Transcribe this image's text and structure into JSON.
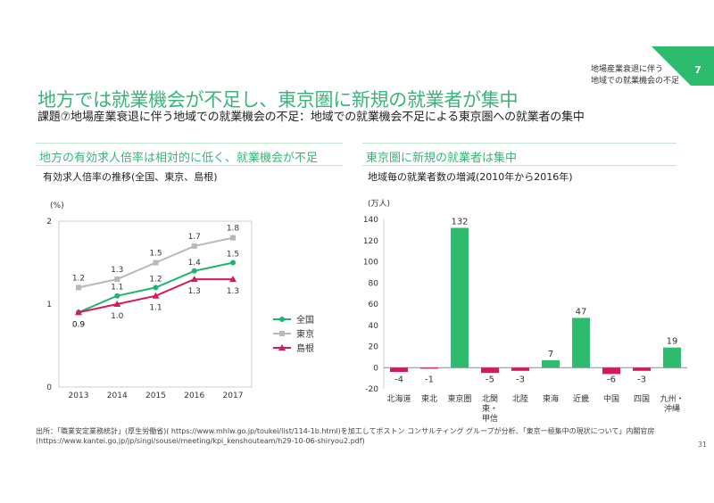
{
  "header": {
    "page_badge": "7",
    "side_note_line1": "地場産業衰退に伴う",
    "side_note_line2": "地域での就業機会の不足",
    "title": "地方では就業機会が不足し、東京圏に新規の就業者が集中",
    "subtitle": "課題⑦地場産業衰退に伴う地域での就業機会の不足：地域での就業機会不足による東京圏への就業者の集中"
  },
  "sections": {
    "left_heading": "地方の有効求人倍率は相対的に低く、就業機会が不足",
    "right_heading": "東京圏に新規の就業者は集中"
  },
  "footer": {
    "source_line1": "出所：「職業安定業務統計」(厚生労働省)( https://www.mhlw.go.jp/toukei/list/114-1b.html)を加工してボストン コンサルティング グループが分析、「東京一極集中の現状について」内閣官房",
    "source_line2": "(https://www.kantei.go.jp/jp/singi/sousei/meeting/kpi_kenshouteam/h29-10-06-shiryou2.pdf)",
    "page_number": "31"
  },
  "colors": {
    "accent": "#3ab47a",
    "national": "#1fb46e",
    "tokyo": "#b8b8b8",
    "shimane": "#d6195a",
    "bar_positive": "#2dbb6e",
    "bar_negative": "#d6195a"
  },
  "chart_data": [
    {
      "type": "line",
      "title": "有効求人倍率の推移(全国、東京、島根)",
      "ylabel": "(%)",
      "x": [
        "2013",
        "2014",
        "2015",
        "2016",
        "2017"
      ],
      "ylim": [
        0,
        2
      ],
      "yticks": [
        "0",
        "1",
        "2"
      ],
      "legend_position": "right",
      "series": [
        {
          "name": "全国",
          "values": [
            0.9,
            1.1,
            1.2,
            1.4,
            1.5
          ],
          "labels": [
            "0.9",
            "1.1",
            "1.2",
            "1.4",
            "1.5"
          ],
          "marker": "circle"
        },
        {
          "name": "東京",
          "values": [
            1.2,
            1.3,
            1.5,
            1.7,
            1.8
          ],
          "labels": [
            "1.2",
            "1.3",
            "1.5",
            "1.7",
            "1.8"
          ],
          "marker": "square"
        },
        {
          "name": "島根",
          "values": [
            0.9,
            1.0,
            1.1,
            1.3,
            1.3
          ],
          "labels": [
            "0.9",
            "1.0",
            "1.1",
            "1.3",
            "1.3"
          ],
          "marker": "triangle"
        }
      ]
    },
    {
      "type": "bar",
      "title": "地域毎の就業者数の増減(2010年から2016年)",
      "ylabel": "(万人)",
      "categories": [
        "北海道",
        "東北",
        "東京圏",
        "北関東・甲信",
        "北陸",
        "東海",
        "近畿",
        "中国",
        "四国",
        "九州・沖縄"
      ],
      "category_lines": [
        [
          "北海道"
        ],
        [
          "東北"
        ],
        [
          "東京圏"
        ],
        [
          "北関",
          "東・",
          "甲信"
        ],
        [
          "北陸"
        ],
        [
          "東海"
        ],
        [
          "近畿"
        ],
        [
          "中国"
        ],
        [
          "四国"
        ],
        [
          "九州・",
          "沖縄"
        ]
      ],
      "values": [
        -4,
        -1,
        132,
        -5,
        -3,
        7,
        47,
        -6,
        -3,
        19
      ],
      "labels": [
        "-4",
        "-1",
        "132",
        "-5",
        "-3",
        "7",
        "47",
        "-6",
        "-3",
        "19"
      ],
      "ylim": [
        -20,
        140
      ],
      "yticks": [
        "-20",
        "0",
        "20",
        "40",
        "60",
        "80",
        "100",
        "120",
        "140"
      ]
    }
  ]
}
